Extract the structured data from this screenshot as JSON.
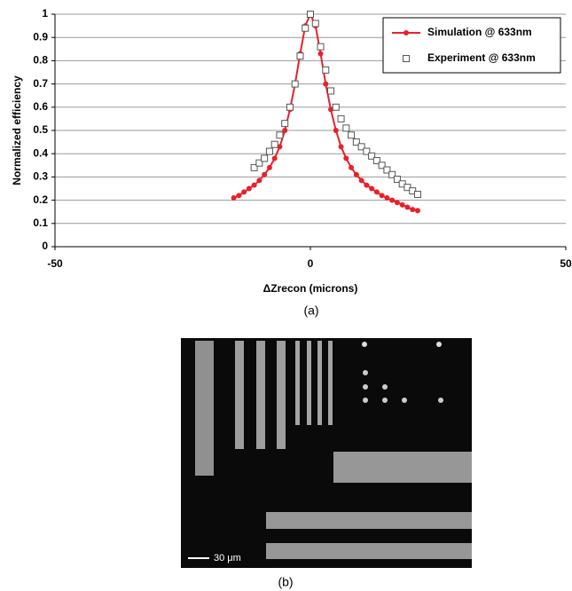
{
  "chart_data": {
    "type": "scatter",
    "x_label": "ΔZrecon (microns)",
    "y_label": "Normalized efficiency",
    "xlim": [
      -50,
      50
    ],
    "xticks": [
      -50,
      0,
      50
    ],
    "ylim": [
      0,
      1
    ],
    "yticks": [
      0,
      0.1,
      0.2,
      0.3,
      0.4,
      0.5,
      0.6,
      0.7,
      0.8,
      0.9,
      1
    ],
    "grid": true,
    "legend": "upper right",
    "series": [
      {
        "name": "Simulation @ 633nm",
        "color": "#e8212a",
        "marker": "circle",
        "line": true,
        "x": [
          -15,
          -14,
          -13,
          -12,
          -11,
          -10,
          -9,
          -8,
          -7,
          -6,
          -5,
          -4,
          -3,
          -2,
          -1,
          0,
          1,
          2,
          3,
          4,
          5,
          6,
          7,
          8,
          9,
          10,
          11,
          12,
          13,
          14,
          15,
          16,
          17,
          18,
          19,
          20,
          21
        ],
        "values": [
          0.21,
          0.22,
          0.235,
          0.25,
          0.265,
          0.285,
          0.31,
          0.34,
          0.38,
          0.43,
          0.5,
          0.59,
          0.7,
          0.83,
          0.95,
          1,
          0.95,
          0.83,
          0.7,
          0.59,
          0.5,
          0.43,
          0.38,
          0.34,
          0.31,
          0.285,
          0.265,
          0.25,
          0.235,
          0.22,
          0.21,
          0.2,
          0.19,
          0.18,
          0.17,
          0.16,
          0.155
        ]
      },
      {
        "name": "Experiment @ 633nm",
        "color": "#555555",
        "marker": "square",
        "line": false,
        "x": [
          -11,
          -10,
          -9,
          -8,
          -7,
          -6,
          -5,
          -4,
          -3,
          -2,
          -1,
          0,
          1,
          2,
          3,
          4,
          5,
          6,
          7,
          8,
          9,
          10,
          11,
          12,
          13,
          14,
          15,
          16,
          17,
          18,
          19,
          20,
          21
        ],
        "values": [
          0.34,
          0.36,
          0.38,
          0.41,
          0.44,
          0.48,
          0.53,
          0.6,
          0.7,
          0.82,
          0.94,
          1,
          0.96,
          0.86,
          0.76,
          0.67,
          0.6,
          0.55,
          0.51,
          0.48,
          0.45,
          0.43,
          0.41,
          0.39,
          0.37,
          0.35,
          0.33,
          0.31,
          0.29,
          0.27,
          0.255,
          0.24,
          0.225
        ]
      }
    ]
  },
  "figure": {
    "caption_a": "(a)",
    "caption_b": "(b)",
    "scale_bar_label": "30 μm"
  }
}
